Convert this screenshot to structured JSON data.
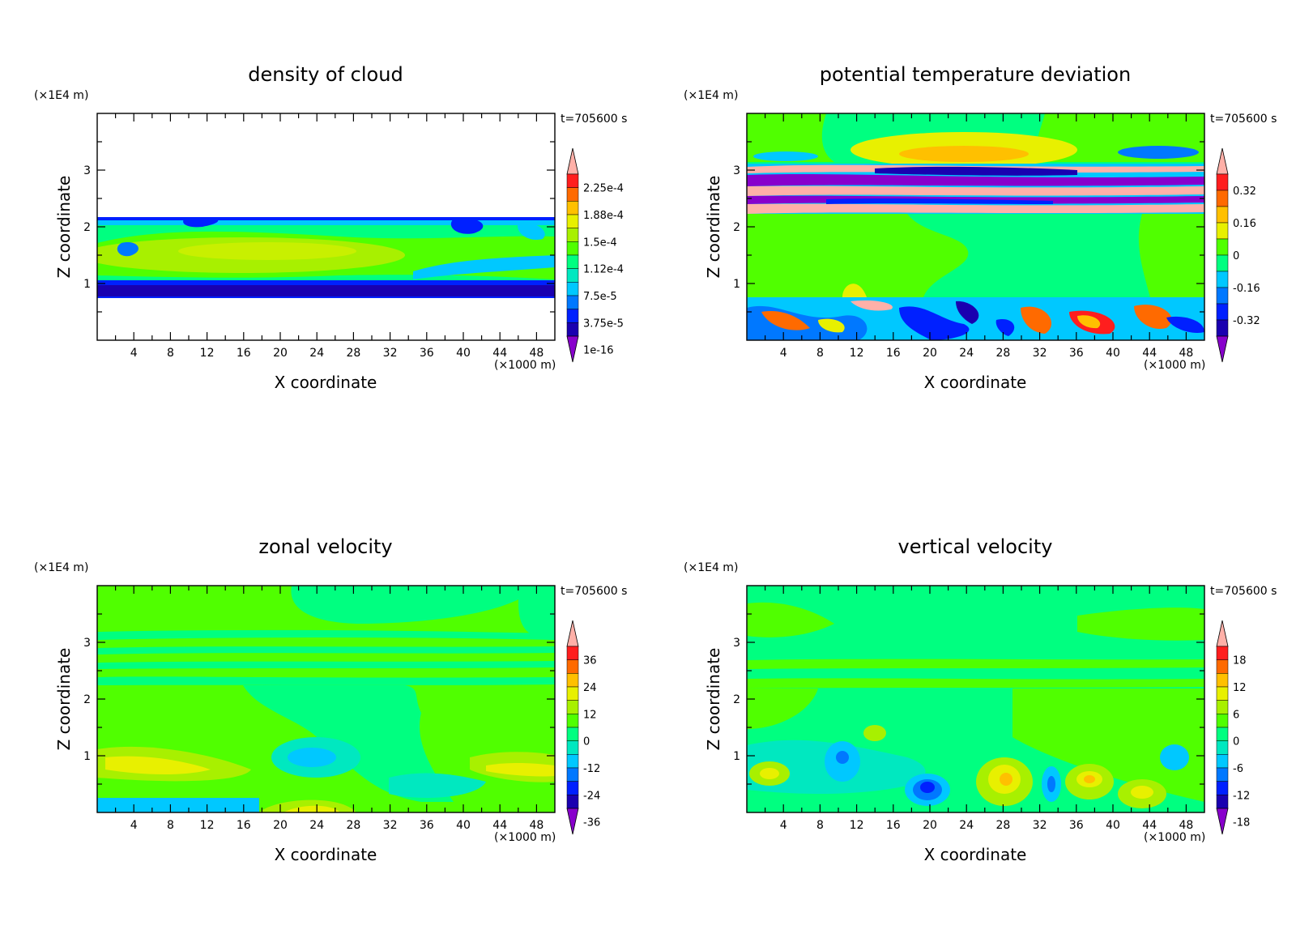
{
  "shared": {
    "time_label": "t=705600 s",
    "x_label": "X coordinate",
    "z_label": "Z coordinate",
    "x_unit": "(×1000 m)",
    "z_unit": "(×1E4 m)",
    "x_ticks": [
      4,
      8,
      12,
      16,
      20,
      24,
      28,
      32,
      36,
      40,
      44,
      48
    ],
    "z_ticks": [
      1,
      2,
      3
    ]
  },
  "chart_data": [
    {
      "type": "heatmap",
      "title": "density of cloud",
      "xlabel": "X coordinate",
      "ylabel": "Z coordinate",
      "xlim": [
        0,
        50
      ],
      "ylim": [
        0,
        4
      ],
      "x_unit": "(×1000 m)",
      "y_unit": "(×1E4 m)",
      "annotation": "t=705600 s",
      "colorbar": {
        "labels": [
          "2.25e-4",
          "1.88e-4",
          "1.5e-4",
          "1.12e-4",
          "7.5e-5",
          "3.75e-5",
          "1e-16"
        ],
        "colors": [
          "#ffb0a8",
          "#ff1e1e",
          "#ff6a00",
          "#ffc000",
          "#e8f000",
          "#a8f000",
          "#50ff00",
          "#00ff80",
          "#00e8c0",
          "#00c8ff",
          "#0078ff",
          "#0020ff",
          "#1a00b0",
          "#8800cc"
        ]
      },
      "cloud_layer": {
        "z_bottom": 0.8,
        "z_top": 2.18
      }
    },
    {
      "type": "heatmap",
      "title": "potential temperature deviation",
      "xlabel": "X coordinate",
      "ylabel": "Z coordinate",
      "xlim": [
        0,
        50
      ],
      "ylim": [
        0,
        4
      ],
      "x_unit": "(×1000 m)",
      "y_unit": "(×1E4 m)",
      "annotation": "t=705600 s",
      "colorbar": {
        "labels": [
          "0.32",
          "0.16",
          "0",
          "-0.16",
          "-0.32"
        ],
        "colors": [
          "#ffb0a8",
          "#ff1e1e",
          "#ff6a00",
          "#ffc000",
          "#e8f000",
          "#50ff00",
          "#00ff80",
          "#00c8ff",
          "#0078ff",
          "#0020ff",
          "#1a00b0",
          "#8800cc"
        ]
      }
    },
    {
      "type": "heatmap",
      "title": "zonal velocity",
      "xlabel": "X coordinate",
      "ylabel": "Z coordinate",
      "xlim": [
        0,
        50
      ],
      "ylim": [
        0,
        4
      ],
      "x_unit": "(×1000 m)",
      "y_unit": "(×1E4 m)",
      "annotation": "t=705600 s",
      "colorbar": {
        "labels": [
          "36",
          "24",
          "12",
          "0",
          "-12",
          "-24",
          "-36"
        ],
        "colors": [
          "#ffb0a8",
          "#ff1e1e",
          "#ff6a00",
          "#ffc000",
          "#e8f000",
          "#a8f000",
          "#50ff00",
          "#00ff80",
          "#00e8c0",
          "#00c8ff",
          "#0078ff",
          "#0020ff",
          "#1a00b0",
          "#8800cc"
        ]
      }
    },
    {
      "type": "heatmap",
      "title": "vertical velocity",
      "xlabel": "X coordinate",
      "ylabel": "Z coordinate",
      "xlim": [
        0,
        50
      ],
      "ylim": [
        0,
        4
      ],
      "x_unit": "(×1000 m)",
      "y_unit": "(×1E4 m)",
      "annotation": "t=705600 s",
      "colorbar": {
        "labels": [
          "18",
          "12",
          "6",
          "0",
          "-6",
          "-12",
          "-18"
        ],
        "colors": [
          "#ffb0a8",
          "#ff1e1e",
          "#ff6a00",
          "#ffc000",
          "#e8f000",
          "#a8f000",
          "#50ff00",
          "#00ff80",
          "#00e8c0",
          "#00c8ff",
          "#0078ff",
          "#0020ff",
          "#1a00b0",
          "#8800cc"
        ]
      }
    }
  ]
}
